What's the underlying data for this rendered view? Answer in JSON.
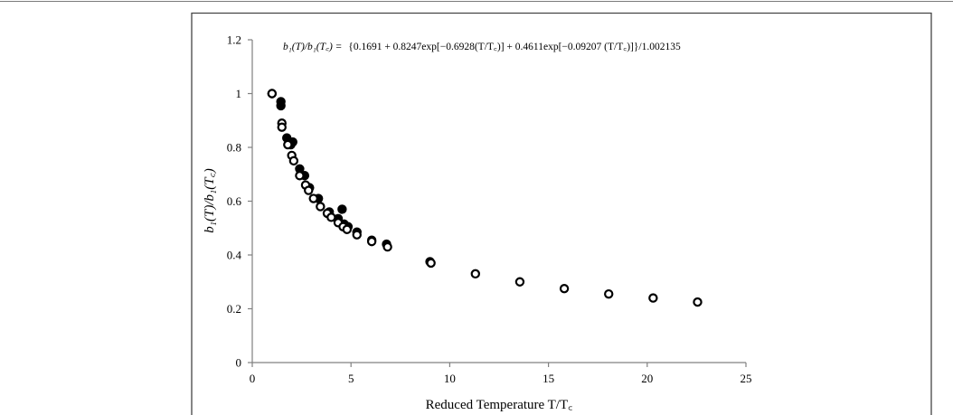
{
  "chart_data": {
    "type": "scatter",
    "title": "",
    "equation_lhs": "b₁(T)/b₁(T꜀) =",
    "equation_rhs": "{0.1691 + 0.8247exp[−0.6928(T/T꜀)] + 0.4611exp[−0.09207 (T/T꜀)]}/1.002135",
    "xlabel": "Reduced Temperature T/T꜀",
    "ylabel": "b₁(T)/b₁(T꜀)",
    "xlim": [
      0,
      25
    ],
    "ylim": [
      0,
      1.2
    ],
    "x_ticks": [
      0,
      5,
      10,
      15,
      20,
      25
    ],
    "x_tick_labels": [
      "0",
      "5",
      "10",
      "15",
      "20",
      "25"
    ],
    "y_ticks": [
      0,
      0.2,
      0.4,
      0.6,
      0.8,
      1.0,
      1.2
    ],
    "y_tick_labels": [
      "0",
      "0.2",
      "0.4",
      "0.6",
      "0.8",
      "1",
      "1.2"
    ],
    "grid": false,
    "series": [
      {
        "marker": "filled-circle",
        "color": "#000000",
        "points": [
          [
            1.0,
            1.0
          ],
          [
            1.45,
            0.97
          ],
          [
            1.45,
            0.955
          ],
          [
            1.75,
            0.835
          ],
          [
            1.95,
            0.81
          ],
          [
            2.05,
            0.82
          ],
          [
            2.4,
            0.72
          ],
          [
            2.65,
            0.695
          ],
          [
            2.9,
            0.65
          ],
          [
            3.35,
            0.61
          ],
          [
            3.9,
            0.56
          ],
          [
            4.35,
            0.535
          ],
          [
            4.55,
            0.57
          ],
          [
            4.65,
            0.515
          ],
          [
            4.85,
            0.505
          ],
          [
            5.3,
            0.485
          ],
          [
            6.05,
            0.455
          ],
          [
            6.8,
            0.44
          ],
          [
            9.0,
            0.375
          ]
        ]
      },
      {
        "marker": "open-circle",
        "color": "#000000",
        "points": [
          [
            1.0,
            1.0
          ],
          [
            1.5,
            0.89
          ],
          [
            1.5,
            0.875
          ],
          [
            1.8,
            0.81
          ],
          [
            2.0,
            0.77
          ],
          [
            2.1,
            0.75
          ],
          [
            2.4,
            0.695
          ],
          [
            2.7,
            0.66
          ],
          [
            2.85,
            0.64
          ],
          [
            3.1,
            0.61
          ],
          [
            3.45,
            0.58
          ],
          [
            3.8,
            0.555
          ],
          [
            4.0,
            0.54
          ],
          [
            4.35,
            0.52
          ],
          [
            4.6,
            0.505
          ],
          [
            4.8,
            0.495
          ],
          [
            5.3,
            0.475
          ],
          [
            6.05,
            0.45
          ],
          [
            6.85,
            0.43
          ],
          [
            9.05,
            0.37
          ],
          [
            11.3,
            0.33
          ],
          [
            13.55,
            0.3
          ],
          [
            15.8,
            0.275
          ],
          [
            18.05,
            0.255
          ],
          [
            20.3,
            0.24
          ],
          [
            22.55,
            0.225
          ]
        ]
      }
    ]
  }
}
